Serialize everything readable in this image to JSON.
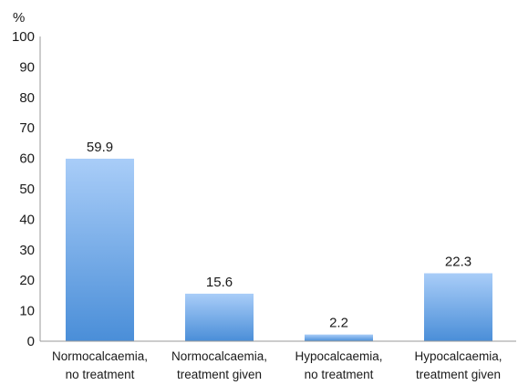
{
  "chart_data": {
    "type": "bar",
    "categories": [
      [
        "Normocalcaemia,",
        "no treatment"
      ],
      [
        "Normocalcaemia,",
        "treatment given"
      ],
      [
        "Hypocalcaemia,",
        "no treatment"
      ],
      [
        "Hypocalcaemia,",
        "treatment given"
      ]
    ],
    "values": [
      59.9,
      15.6,
      2.2,
      22.3
    ],
    "data_labels": [
      "59.9",
      "15.6",
      "2.2",
      "22.3"
    ],
    "ylabel": "%",
    "ylim": [
      0,
      100
    ],
    "yticks": [
      0,
      10,
      20,
      30,
      40,
      50,
      60,
      70,
      80,
      90,
      100
    ],
    "grid": false,
    "legend": "none",
    "colors": {
      "bar_top": "#a9cdf8",
      "bar_bottom": "#4a8ed8",
      "axis": "#999999"
    }
  }
}
